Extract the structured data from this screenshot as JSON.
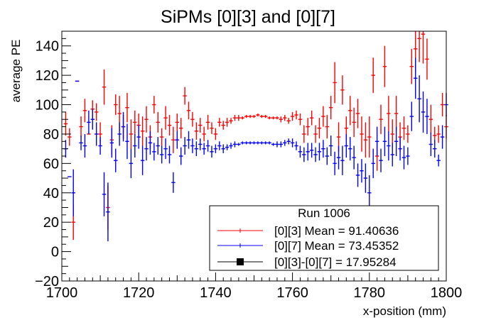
{
  "chart_data": {
    "type": "scatter",
    "title": "SiPMs [0][3] and [0][7]",
    "xlabel": "x-position (mm)",
    "ylabel": "average PE",
    "xlim": [
      1700,
      1800
    ],
    "ylim": [
      -20,
      150
    ],
    "xticks": [
      1700,
      1720,
      1740,
      1760,
      1780,
      1800
    ],
    "yticks": [
      -20,
      0,
      20,
      40,
      60,
      80,
      100,
      120,
      140
    ],
    "grid": false,
    "legend": {
      "title": "Run 1006",
      "placement": "bottom-right",
      "entries": [
        {
          "label": "[0][3] Mean = 91.40636",
          "color": "#ff0000",
          "marker": "errorbar"
        },
        {
          "label": "[0][7] Mean = 73.45352",
          "color": "#0000ff",
          "marker": "errorbar"
        },
        {
          "label": "[0][3]-[0][7] = 17.95284",
          "color": "#000000",
          "marker": "square"
        }
      ]
    },
    "series": [
      {
        "name": "[0][3]",
        "color": "#ff0000",
        "points": [
          [
            1701,
            87,
            8
          ],
          [
            1702,
            78,
            6
          ],
          [
            1703,
            20,
            12
          ],
          [
            1704,
            116,
            0
          ],
          [
            1705,
            85,
            7
          ],
          [
            1706,
            96,
            8
          ],
          [
            1707,
            80,
            0
          ],
          [
            1708,
            97,
            6
          ],
          [
            1709,
            95,
            6
          ],
          [
            1710,
            80,
            8
          ],
          [
            1711,
            112,
            12
          ],
          [
            1712,
            30,
            15
          ],
          [
            1713,
            76,
            10
          ],
          [
            1714,
            100,
            7
          ],
          [
            1715,
            94,
            12
          ],
          [
            1716,
            85,
            8
          ],
          [
            1717,
            98,
            10
          ],
          [
            1718,
            80,
            10
          ],
          [
            1719,
            88,
            8
          ],
          [
            1720,
            86,
            8
          ],
          [
            1721,
            82,
            10
          ],
          [
            1722,
            90,
            9
          ],
          [
            1723,
            78,
            8
          ],
          [
            1724,
            100,
            6
          ],
          [
            1725,
            88,
            7
          ],
          [
            1726,
            78,
            6
          ],
          [
            1727,
            91,
            8
          ],
          [
            1728,
            86,
            7
          ],
          [
            1729,
            76,
            9
          ],
          [
            1730,
            88,
            6
          ],
          [
            1731,
            84,
            7
          ],
          [
            1732,
            106,
            6
          ],
          [
            1733,
            96,
            6
          ],
          [
            1734,
            90,
            5
          ],
          [
            1735,
            82,
            6
          ],
          [
            1736,
            86,
            5
          ],
          [
            1737,
            80,
            5
          ],
          [
            1738,
            88,
            5
          ],
          [
            1739,
            84,
            4
          ],
          [
            1740,
            80,
            4
          ],
          [
            1741,
            88,
            3
          ],
          [
            1742,
            86,
            3
          ],
          [
            1743,
            88,
            3
          ],
          [
            1744,
            89,
            2
          ],
          [
            1745,
            91,
            2
          ],
          [
            1746,
            91,
            2
          ],
          [
            1747,
            91,
            1
          ],
          [
            1748,
            92,
            1
          ],
          [
            1749,
            92,
            1
          ],
          [
            1750,
            92,
            1
          ],
          [
            1751,
            93,
            1
          ],
          [
            1752,
            92,
            1
          ],
          [
            1753,
            92,
            1
          ],
          [
            1754,
            91,
            1
          ],
          [
            1755,
            91,
            1
          ],
          [
            1756,
            91,
            1
          ],
          [
            1757,
            90,
            2
          ],
          [
            1758,
            91,
            2
          ],
          [
            1759,
            89,
            2
          ],
          [
            1760,
            92,
            3
          ],
          [
            1761,
            93,
            3
          ],
          [
            1762,
            90,
            4
          ],
          [
            1763,
            80,
            6
          ],
          [
            1764,
            85,
            6
          ],
          [
            1765,
            91,
            5
          ],
          [
            1766,
            80,
            6
          ],
          [
            1767,
            84,
            7
          ],
          [
            1768,
            92,
            7
          ],
          [
            1769,
            85,
            8
          ],
          [
            1770,
            98,
            8
          ],
          [
            1771,
            115,
            14
          ],
          [
            1772,
            78,
            10
          ],
          [
            1773,
            110,
            10
          ],
          [
            1774,
            84,
            8
          ],
          [
            1775,
            96,
            10
          ],
          [
            1776,
            88,
            10
          ],
          [
            1777,
            94,
            10
          ],
          [
            1778,
            80,
            12
          ],
          [
            1779,
            76,
            12
          ],
          [
            1780,
            78,
            14
          ],
          [
            1781,
            120,
            12
          ],
          [
            1782,
            65,
            10
          ],
          [
            1783,
            90,
            10
          ],
          [
            1784,
            126,
            14
          ],
          [
            1785,
            94,
            12
          ],
          [
            1786,
            80,
            10
          ],
          [
            1787,
            94,
            12
          ],
          [
            1788,
            78,
            10
          ],
          [
            1789,
            84,
            8
          ],
          [
            1790,
            80,
            6
          ],
          [
            1791,
            126,
            12
          ],
          [
            1792,
            138,
            16
          ],
          [
            1793,
            145,
            16
          ],
          [
            1794,
            148,
            20
          ],
          [
            1795,
            131,
            14
          ],
          [
            1796,
            90,
            10
          ],
          [
            1797,
            79,
            6
          ],
          [
            1798,
            80,
            6
          ],
          [
            1799,
            100,
            8
          ],
          [
            1800,
            85,
            8
          ]
        ]
      },
      {
        "name": "[0][7]",
        "color": "#0000ff",
        "points": [
          [
            1701,
            70,
            6
          ],
          [
            1702,
            51,
            0
          ],
          [
            1703,
            40,
            16
          ],
          [
            1704,
            116,
            0
          ],
          [
            1705,
            74,
            5
          ],
          [
            1706,
            72,
            8
          ],
          [
            1707,
            88,
            8
          ],
          [
            1708,
            90,
            7
          ],
          [
            1709,
            80,
            8
          ],
          [
            1710,
            72,
            6
          ],
          [
            1711,
            39,
            15
          ],
          [
            1712,
            27,
            20
          ],
          [
            1713,
            74,
            10
          ],
          [
            1714,
            62,
            8
          ],
          [
            1715,
            80,
            8
          ],
          [
            1716,
            85,
            10
          ],
          [
            1717,
            75,
            12
          ],
          [
            1718,
            60,
            10
          ],
          [
            1719,
            72,
            8
          ],
          [
            1720,
            78,
            8
          ],
          [
            1721,
            62,
            10
          ],
          [
            1722,
            70,
            8
          ],
          [
            1723,
            74,
            8
          ],
          [
            1724,
            68,
            6
          ],
          [
            1725,
            72,
            6
          ],
          [
            1726,
            66,
            6
          ],
          [
            1727,
            70,
            7
          ],
          [
            1728,
            66,
            6
          ],
          [
            1729,
            47,
            7
          ],
          [
            1730,
            76,
            6
          ],
          [
            1731,
            65,
            6
          ],
          [
            1732,
            72,
            6
          ],
          [
            1733,
            76,
            6
          ],
          [
            1734,
            72,
            5
          ],
          [
            1735,
            70,
            5
          ],
          [
            1736,
            73,
            4
          ],
          [
            1737,
            70,
            4
          ],
          [
            1738,
            72,
            4
          ],
          [
            1739,
            68,
            4
          ],
          [
            1740,
            70,
            3
          ],
          [
            1741,
            72,
            3
          ],
          [
            1742,
            70,
            3
          ],
          [
            1743,
            71,
            2
          ],
          [
            1744,
            72,
            2
          ],
          [
            1745,
            73,
            2
          ],
          [
            1746,
            73,
            1
          ],
          [
            1747,
            74,
            1
          ],
          [
            1748,
            74,
            1
          ],
          [
            1749,
            74,
            1
          ],
          [
            1750,
            74,
            1
          ],
          [
            1751,
            74,
            1
          ],
          [
            1752,
            74,
            1
          ],
          [
            1753,
            74,
            1
          ],
          [
            1754,
            74,
            1
          ],
          [
            1755,
            73,
            1
          ],
          [
            1756,
            73,
            2
          ],
          [
            1757,
            73,
            2
          ],
          [
            1758,
            74,
            2
          ],
          [
            1759,
            75,
            2
          ],
          [
            1760,
            74,
            3
          ],
          [
            1761,
            72,
            3
          ],
          [
            1762,
            68,
            4
          ],
          [
            1763,
            66,
            5
          ],
          [
            1764,
            68,
            6
          ],
          [
            1765,
            69,
            5
          ],
          [
            1766,
            66,
            5
          ],
          [
            1767,
            68,
            6
          ],
          [
            1768,
            70,
            6
          ],
          [
            1769,
            65,
            6
          ],
          [
            1770,
            72,
            7
          ],
          [
            1771,
            60,
            8
          ],
          [
            1772,
            64,
            8
          ],
          [
            1773,
            62,
            10
          ],
          [
            1774,
            72,
            8
          ],
          [
            1775,
            70,
            8
          ],
          [
            1776,
            64,
            8
          ],
          [
            1777,
            52,
            8
          ],
          [
            1778,
            55,
            8
          ],
          [
            1779,
            50,
            10
          ],
          [
            1780,
            40,
            12
          ],
          [
            1781,
            60,
            10
          ],
          [
            1782,
            75,
            10
          ],
          [
            1783,
            62,
            8
          ],
          [
            1784,
            75,
            10
          ],
          [
            1785,
            72,
            10
          ],
          [
            1786,
            66,
            8
          ],
          [
            1787,
            75,
            10
          ],
          [
            1788,
            70,
            8
          ],
          [
            1789,
            64,
            8
          ],
          [
            1790,
            65,
            6
          ],
          [
            1791,
            92,
            10
          ],
          [
            1792,
            118,
            14
          ],
          [
            1793,
            104,
            16
          ],
          [
            1794,
            95,
            14
          ],
          [
            1795,
            92,
            12
          ],
          [
            1796,
            73,
            8
          ],
          [
            1797,
            70,
            6
          ],
          [
            1798,
            62,
            4
          ],
          [
            1799,
            78,
            8
          ],
          [
            1800,
            100,
            8
          ]
        ]
      }
    ]
  }
}
